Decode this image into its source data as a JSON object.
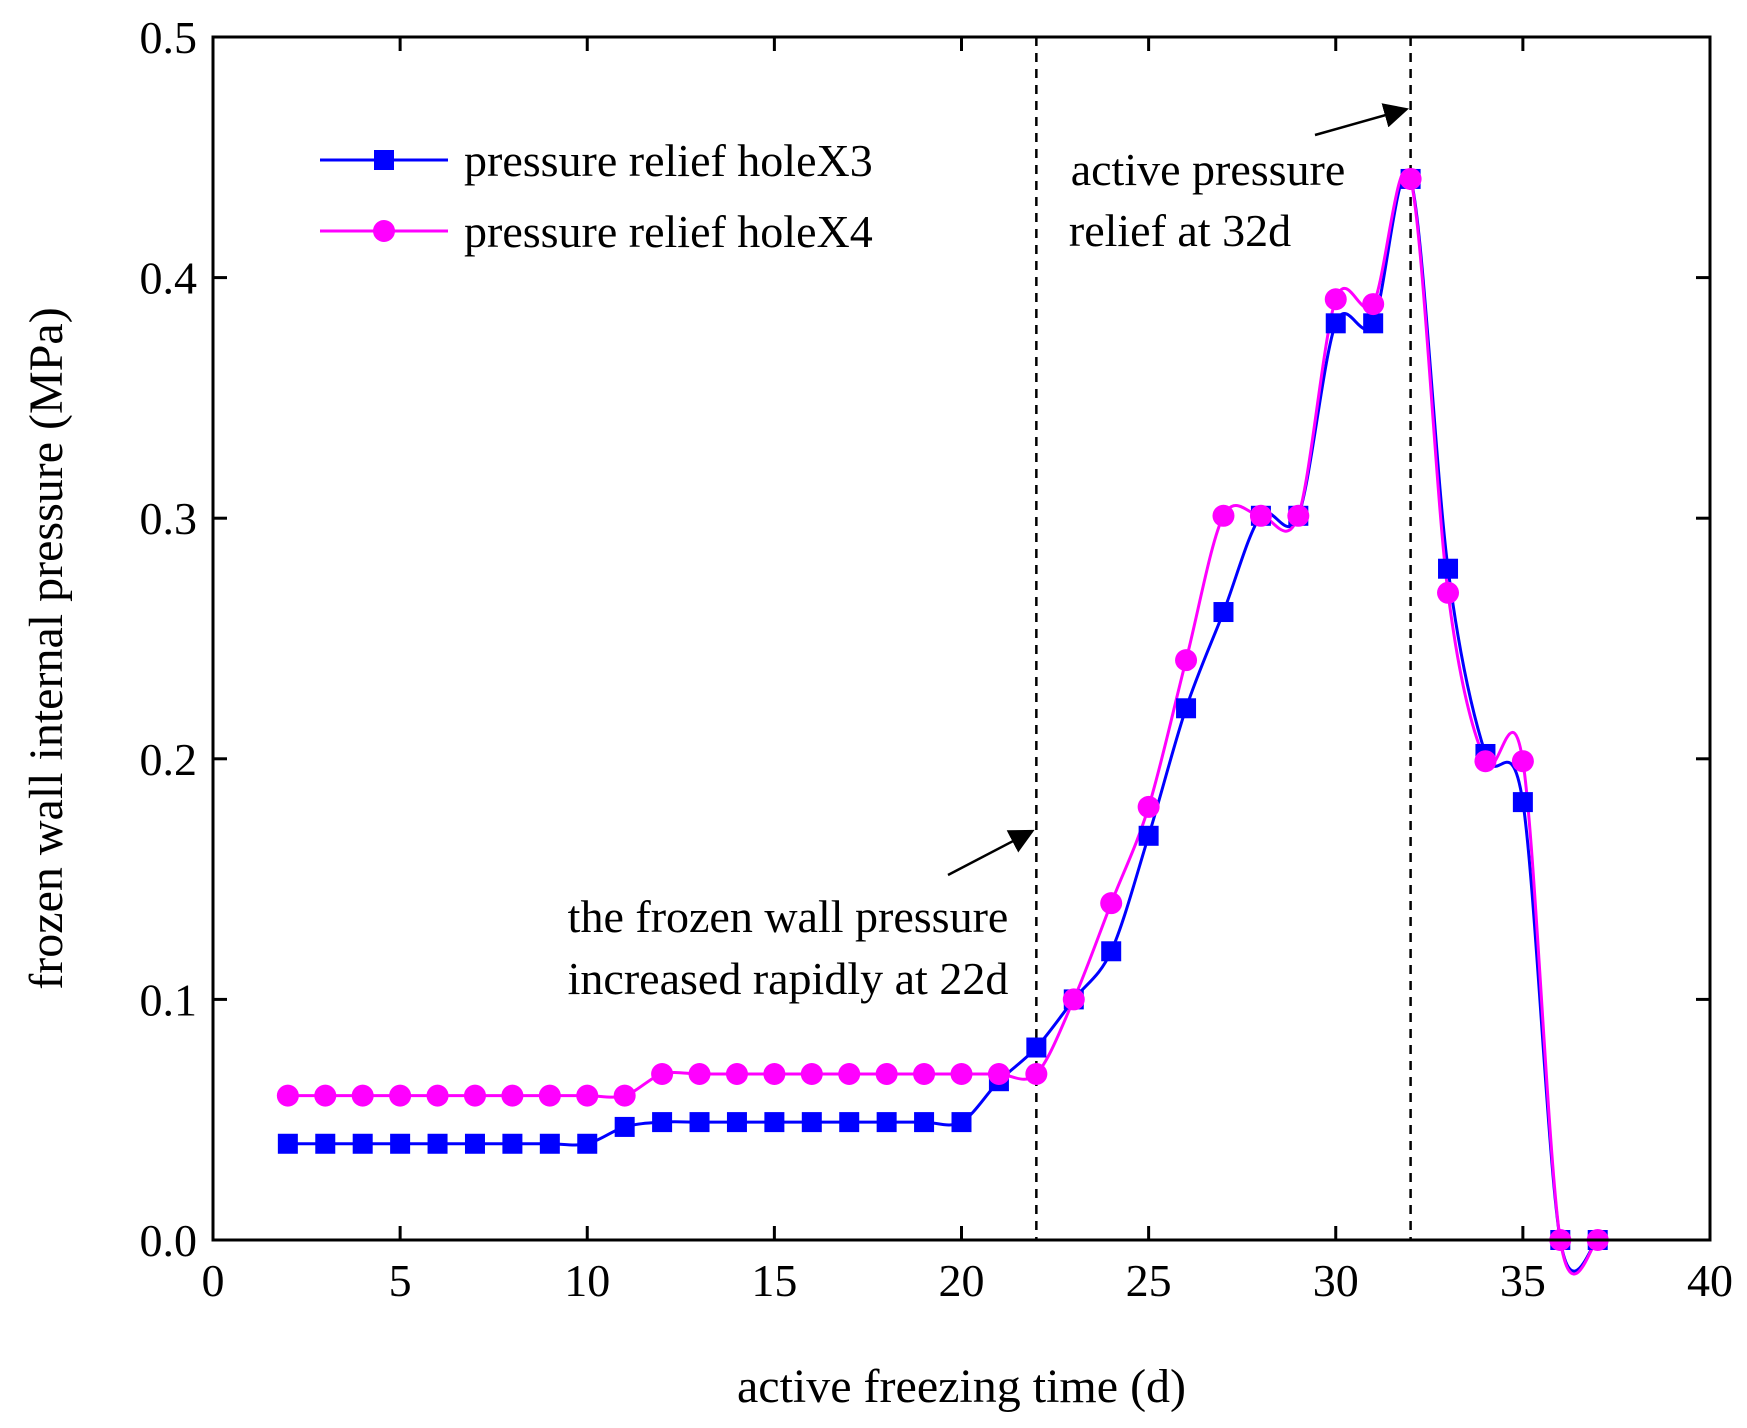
{
  "chart_data": {
    "type": "line",
    "title": "",
    "xlabel": "active freezing time (d)",
    "ylabel": "frozen wall internal pressure   (MPa)",
    "xlim": [
      0,
      40
    ],
    "ylim": [
      0.0,
      0.5
    ],
    "xticks": [
      0,
      5,
      10,
      15,
      20,
      25,
      30,
      35,
      40
    ],
    "xtick_labels": [
      "0",
      "5",
      "10",
      "15",
      "20",
      "25",
      "30",
      "35",
      "40"
    ],
    "yticks": [
      0.0,
      0.1,
      0.2,
      0.3,
      0.4,
      0.5
    ],
    "ytick_labels": [
      "0.0",
      "0.1",
      "0.2",
      "0.3",
      "0.4",
      "0.5"
    ],
    "grid": false,
    "legend_position": "top-left",
    "series": [
      {
        "name": "pressure relief holeX3",
        "color": "#0000ff",
        "marker": "square",
        "x": [
          2,
          3,
          4,
          5,
          6,
          7,
          8,
          9,
          10,
          11,
          12,
          13,
          14,
          15,
          16,
          17,
          18,
          19,
          20,
          21,
          22,
          23,
          24,
          25,
          26,
          27,
          28,
          29,
          30,
          31,
          32,
          33,
          34,
          35,
          36,
          37
        ],
        "values": [
          0.04,
          0.04,
          0.04,
          0.04,
          0.04,
          0.04,
          0.04,
          0.04,
          0.04,
          0.047,
          0.049,
          0.049,
          0.049,
          0.049,
          0.049,
          0.049,
          0.049,
          0.049,
          0.049,
          0.066,
          0.08,
          0.1,
          0.12,
          0.168,
          0.221,
          0.261,
          0.301,
          0.301,
          0.381,
          0.381,
          0.441,
          0.279,
          0.202,
          0.182,
          0.0,
          0.0
        ]
      },
      {
        "name": "pressure relief holeX4",
        "color": "#ff00ff",
        "marker": "circle",
        "x": [
          2,
          3,
          4,
          5,
          6,
          7,
          8,
          9,
          10,
          11,
          12,
          13,
          14,
          15,
          16,
          17,
          18,
          19,
          20,
          21,
          22,
          23,
          24,
          25,
          26,
          27,
          28,
          29,
          30,
          31,
          32,
          33,
          34,
          35,
          36,
          37
        ],
        "values": [
          0.06,
          0.06,
          0.06,
          0.06,
          0.06,
          0.06,
          0.06,
          0.06,
          0.06,
          0.06,
          0.069,
          0.069,
          0.069,
          0.069,
          0.069,
          0.069,
          0.069,
          0.069,
          0.069,
          0.069,
          0.069,
          0.1,
          0.14,
          0.18,
          0.241,
          0.301,
          0.301,
          0.301,
          0.391,
          0.389,
          0.441,
          0.269,
          0.199,
          0.199,
          0.0,
          0.0
        ]
      }
    ],
    "reference_lines": [
      {
        "x": 22,
        "style": "dashed"
      },
      {
        "x": 32,
        "style": "dashed"
      }
    ],
    "annotations": [
      {
        "lines": [
          "the frozen wall pressure",
          "increased rapidly at 22d"
        ],
        "arrow_to": {
          "x": 22,
          "y": 0.17
        }
      },
      {
        "lines": [
          "active pressure",
          "relief at 32d"
        ],
        "arrow_to": {
          "x": 32,
          "y": 0.47
        }
      }
    ]
  }
}
